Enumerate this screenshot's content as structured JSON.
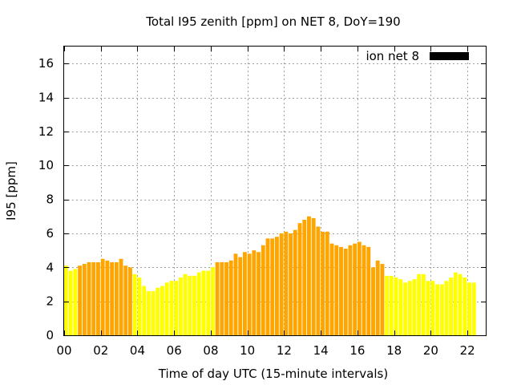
{
  "chart_data": {
    "type": "bar",
    "title": "Total I95 zenith [ppm] on NET 8, DoY=190",
    "xlabel": "Time of day UTC (15-minute intervals)",
    "ylabel": "I95 [ppm]",
    "xlim": [
      0,
      23
    ],
    "ylim": [
      0,
      17
    ],
    "bin_hours": 0.25,
    "x_ticks": [
      "00",
      "02",
      "04",
      "06",
      "08",
      "10",
      "12",
      "14",
      "16",
      "18",
      "20",
      "22"
    ],
    "y_ticks": [
      "0",
      "2",
      "4",
      "6",
      "8",
      "10",
      "12",
      "14",
      "16"
    ],
    "grid": true,
    "legend": {
      "position": "top-right",
      "entries": [
        {
          "label": "ion net 8",
          "color": "#000000"
        }
      ]
    },
    "colors": {
      "yellow": "#ffff00",
      "orange": "#ffa500"
    },
    "series": [
      {
        "name": "ion net 8",
        "values": [
          4.1,
          3.8,
          3.9,
          4.1,
          4.2,
          4.3,
          4.3,
          4.3,
          4.5,
          4.4,
          4.3,
          4.3,
          4.5,
          4.1,
          4.0,
          3.6,
          3.4,
          2.9,
          2.6,
          2.6,
          2.8,
          2.9,
          3.1,
          3.2,
          3.2,
          3.4,
          3.6,
          3.5,
          3.5,
          3.7,
          3.8,
          3.8,
          4.0,
          4.3,
          4.3,
          4.3,
          4.4,
          4.8,
          4.6,
          4.9,
          4.8,
          5.0,
          4.9,
          5.3,
          5.7,
          5.7,
          5.8,
          6.0,
          6.1,
          6.0,
          6.2,
          6.6,
          6.8,
          7.0,
          6.9,
          6.4,
          6.1,
          6.1,
          5.4,
          5.3,
          5.2,
          5.1,
          5.3,
          5.4,
          5.5,
          5.3,
          5.2,
          4.0,
          4.4,
          4.2,
          3.5,
          3.5,
          3.4,
          3.3,
          3.1,
          3.2,
          3.3,
          3.6,
          3.6,
          3.2,
          3.2,
          3.0,
          3.0,
          3.2,
          3.4,
          3.7,
          3.6,
          3.4,
          3.1,
          3.1
        ],
        "colors": [
          "Y",
          "Y",
          "Y",
          "O",
          "O",
          "O",
          "O",
          "O",
          "O",
          "O",
          "O",
          "O",
          "O",
          "O",
          "O",
          "Y",
          "Y",
          "Y",
          "Y",
          "Y",
          "Y",
          "Y",
          "Y",
          "Y",
          "Y",
          "Y",
          "Y",
          "Y",
          "Y",
          "Y",
          "Y",
          "Y",
          "Y",
          "O",
          "O",
          "O",
          "O",
          "O",
          "O",
          "O",
          "O",
          "O",
          "O",
          "O",
          "O",
          "O",
          "O",
          "O",
          "O",
          "O",
          "O",
          "O",
          "O",
          "O",
          "O",
          "O",
          "O",
          "O",
          "O",
          "O",
          "O",
          "O",
          "O",
          "O",
          "O",
          "O",
          "O",
          "O",
          "O",
          "O",
          "Y",
          "Y",
          "Y",
          "Y",
          "Y",
          "Y",
          "Y",
          "Y",
          "Y",
          "Y",
          "Y",
          "Y",
          "Y",
          "Y",
          "Y",
          "Y",
          "Y",
          "Y",
          "Y",
          "Y"
        ]
      }
    ]
  }
}
